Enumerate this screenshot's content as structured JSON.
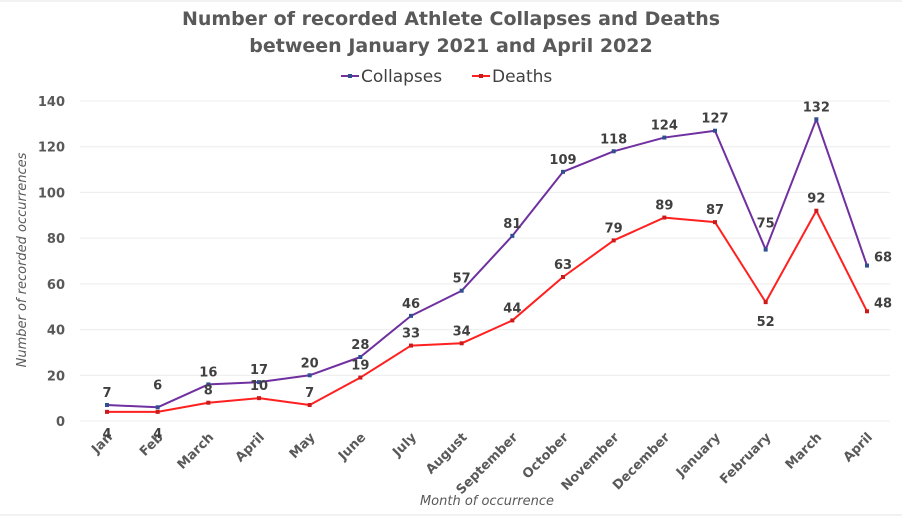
{
  "chart_data": {
    "type": "line",
    "title": [
      "Number of recorded Athlete Collapses and Deaths",
      "between January 2021 and April 2022"
    ],
    "xlabel": "Month of occurrence",
    "ylabel": "Number of recorded occurrences",
    "ylim": [
      0,
      140
    ],
    "yticks": [
      0,
      20,
      40,
      60,
      80,
      100,
      120,
      140
    ],
    "grid": true,
    "legend_position": "top",
    "categories": [
      "Jan",
      "Feb",
      "March",
      "April",
      "May",
      "June",
      "July",
      "August",
      "September",
      "October",
      "November",
      "December",
      "January",
      "February",
      "March",
      "April"
    ],
    "series": [
      {
        "name": "Collapses",
        "color": "#7030a0",
        "marker_color": "#2f4f8f",
        "values": [
          7,
          6,
          16,
          17,
          20,
          28,
          46,
          57,
          81,
          109,
          118,
          124,
          127,
          75,
          132,
          68
        ]
      },
      {
        "name": "Deaths",
        "color": "#ff2020",
        "marker_color": "#cc1a1a",
        "values": [
          4,
          4,
          8,
          10,
          7,
          19,
          33,
          34,
          44,
          63,
          79,
          89,
          87,
          52,
          92,
          48
        ]
      }
    ]
  }
}
